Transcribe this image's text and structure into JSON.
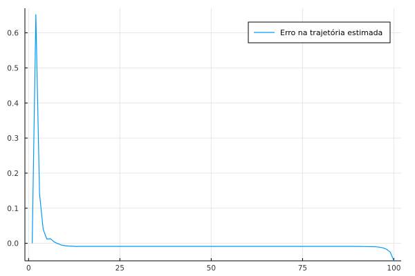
{
  "chart_data": {
    "type": "line",
    "title": "",
    "xlabel": "",
    "ylabel": "",
    "xlim": [
      -1,
      102
    ],
    "ylim": [
      -0.05,
      0.67
    ],
    "xticks": [
      0,
      25,
      50,
      75,
      100
    ],
    "xtick_labels": [
      "0",
      "25",
      "50",
      "75",
      "100"
    ],
    "yticks": [
      0.0,
      0.1,
      0.2,
      0.3,
      0.4,
      0.5,
      0.6
    ],
    "ytick_labels": [
      "0.0",
      "0.1",
      "0.2",
      "0.3",
      "0.4",
      "0.5",
      "0.6"
    ],
    "grid": true,
    "legend_position": "top-right",
    "series": [
      {
        "name": "Erro na trajetória estimada",
        "color": "#009af9",
        "x": [
          1,
          2,
          3,
          4,
          5,
          6,
          7,
          8,
          9,
          10,
          11,
          12,
          13,
          14,
          15,
          20,
          30,
          40,
          50,
          60,
          70,
          80,
          85,
          90,
          92,
          94,
          95,
          96,
          97,
          98,
          99,
          100
        ],
        "y": [
          0.0,
          0.652,
          0.142,
          0.04,
          0.012,
          0.013,
          0.004,
          -0.001,
          -0.005,
          -0.007,
          -0.008,
          -0.0085,
          -0.009,
          -0.009,
          -0.009,
          -0.009,
          -0.009,
          -0.009,
          -0.009,
          -0.009,
          -0.009,
          -0.009,
          -0.009,
          -0.009,
          -0.0093,
          -0.0097,
          -0.01,
          -0.011,
          -0.013,
          -0.017,
          -0.025,
          -0.05
        ]
      }
    ]
  }
}
